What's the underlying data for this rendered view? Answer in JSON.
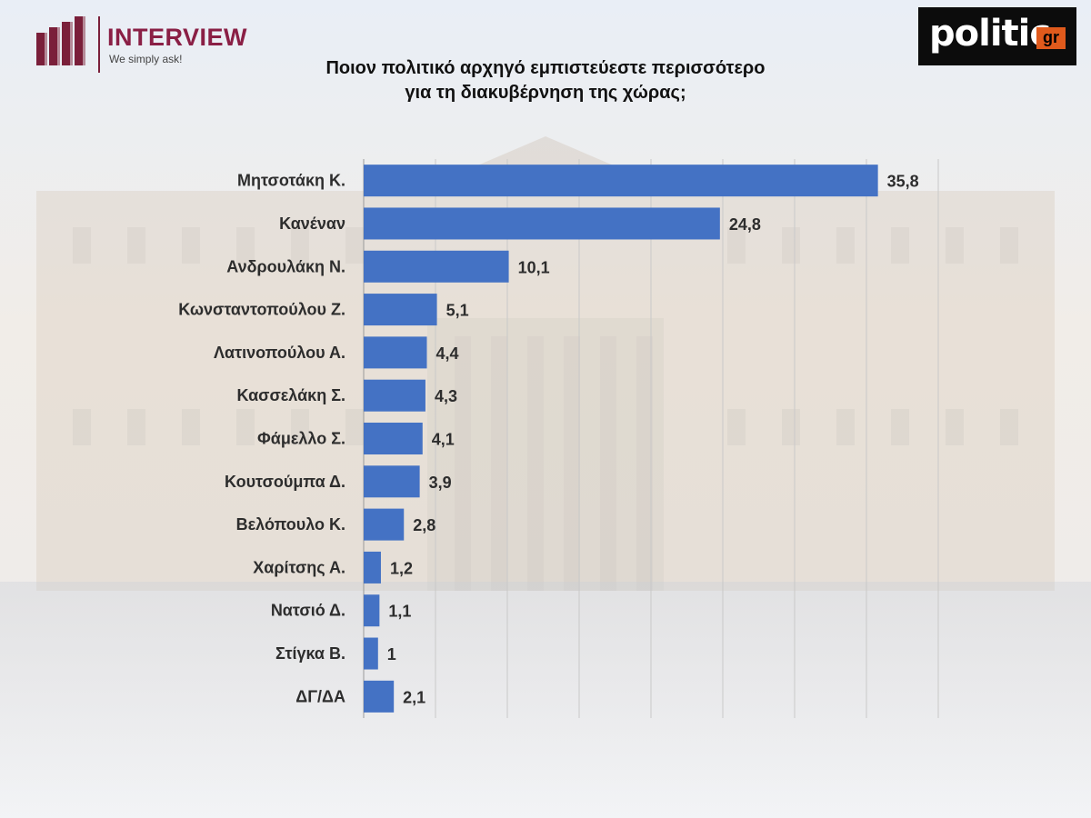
{
  "branding": {
    "interview_name": "INTERVIEW",
    "interview_tagline": "We simply ask!",
    "politic_name": "politic",
    "politic_suffix": "gr"
  },
  "title_lines": [
    "Ποιον πολιτικό αρχηγό εμπιστεύεστε περισσότερο",
    "για τη διακυβέρνηση της χώρας;"
  ],
  "colors": {
    "bar": "#4472c4",
    "brand_interview": "#8a1f45",
    "brand_politic_accent": "#e05a1c"
  },
  "chart_data": {
    "type": "bar",
    "orientation": "horizontal",
    "title": "Ποιον πολιτικό αρχηγό εμπιστεύεστε περισσότερο για τη διακυβέρνηση της χώρας;",
    "categories": [
      "Μητσοτάκη Κ.",
      "Κανέναν",
      "Ανδρουλάκη Ν.",
      "Κωνσταντοπούλου Ζ.",
      "Λατινοπούλου Α.",
      "Κασσελάκη Σ.",
      "Φάμελλο Σ.",
      "Κουτσούμπα Δ.",
      "Βελόπουλο Κ.",
      "Χαρίτσης Α.",
      "Νατσιό Δ.",
      "Στίγκα Β.",
      "ΔΓ/ΔΑ"
    ],
    "values": [
      35.8,
      24.8,
      10.1,
      5.1,
      4.4,
      4.3,
      4.1,
      3.9,
      2.8,
      1.2,
      1.1,
      1,
      2.1
    ],
    "value_labels": [
      "35,8",
      "24,8",
      "10,1",
      "5,1",
      "4,4",
      "4,3",
      "4,1",
      "3,9",
      "2,8",
      "1,2",
      "1,1",
      "1",
      "2,1"
    ],
    "xlim": [
      0,
      40
    ],
    "grid": true,
    "xlabel": "",
    "ylabel": ""
  }
}
